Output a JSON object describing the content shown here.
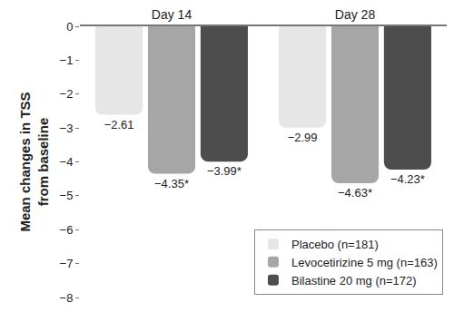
{
  "chart_data": {
    "type": "bar",
    "categories": [
      "Day 14",
      "Day 28"
    ],
    "series": [
      {
        "name": "Placebo (n=181)",
        "color": "#e6e6e6",
        "values": [
          -2.61,
          -2.99
        ],
        "value_labels": [
          "−2.61",
          "−2.99"
        ]
      },
      {
        "name": "Levocetirizine 5 mg (n=163)",
        "color": "#a6a6a6",
        "values": [
          -4.35,
          -4.63
        ],
        "value_labels": [
          "−4.35*",
          "−4.63*"
        ]
      },
      {
        "name": "Bilastine 20 mg (n=172)",
        "color": "#4d4d4d",
        "values": [
          -3.99,
          -4.23
        ],
        "value_labels": [
          "−3.99*",
          "−4.23*"
        ]
      }
    ],
    "ylabel": "Mean changes in TSS\nfrom baseline",
    "ylim": [
      -8,
      0
    ],
    "yticks": [
      0,
      -1,
      -2,
      -3,
      -4,
      -5,
      -6,
      -7,
      -8
    ],
    "grid": false,
    "legend": "lower right",
    "data_labels": true
  }
}
